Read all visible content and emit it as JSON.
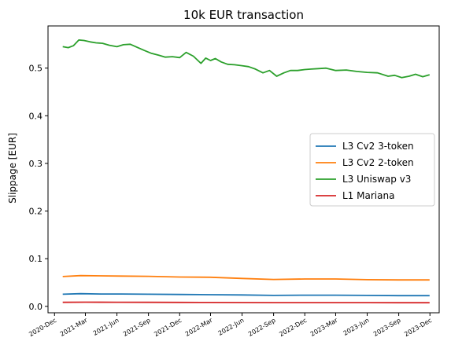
{
  "chart_data": {
    "type": "line",
    "title": "10k EUR transaction",
    "xlabel": "",
    "ylabel": "Slippage [EUR]",
    "xlim": [
      "2020-11-12",
      "2023-12-28"
    ],
    "ylim": [
      -0.0135,
      0.5885
    ],
    "yticks": [
      0.0,
      0.1,
      0.2,
      0.3,
      0.4,
      0.5
    ],
    "ytick_labels": [
      "0.0",
      "0.1",
      "0.2",
      "0.3",
      "0.4",
      "0.5"
    ],
    "xticks": [
      "2020-12-01",
      "2021-03-01",
      "2021-06-01",
      "2021-09-01",
      "2021-12-01",
      "2022-03-01",
      "2022-06-01",
      "2022-09-01",
      "2022-12-01",
      "2023-03-01",
      "2023-06-01",
      "2023-09-01",
      "2023-12-01"
    ],
    "xtick_labels": [
      "2020-Dec",
      "2021-Mar",
      "2021-Jun",
      "2021-Sep",
      "2021-Dec",
      "2022-Mar",
      "2022-Jun",
      "2022-Sep",
      "2022-Dec",
      "2023-Mar",
      "2023-Jun",
      "2023-Sep",
      "2023-Dec"
    ],
    "grid": false,
    "legend_position": "center-right",
    "series": [
      {
        "name": "L3 Cv2 3-token",
        "color": "#1f77b4",
        "x": [
          "2020-12-25",
          "2021-02-15",
          "2021-04-15",
          "2021-06-15",
          "2021-09-01",
          "2021-12-01",
          "2022-03-01",
          "2022-06-01",
          "2022-09-01",
          "2022-12-01",
          "2023-03-01",
          "2023-06-01",
          "2023-09-01",
          "2023-11-30"
        ],
        "y": [
          0.0255,
          0.0265,
          0.026,
          0.026,
          0.0255,
          0.025,
          0.0245,
          0.024,
          0.023,
          0.0235,
          0.0235,
          0.023,
          0.0225,
          0.0225
        ]
      },
      {
        "name": "L3 Cv2 2-token",
        "color": "#ff7f0e",
        "x": [
          "2020-12-25",
          "2021-02-15",
          "2021-04-15",
          "2021-06-15",
          "2021-09-01",
          "2021-12-01",
          "2022-03-01",
          "2022-06-01",
          "2022-09-01",
          "2022-12-01",
          "2023-03-01",
          "2023-06-01",
          "2023-09-01",
          "2023-11-30"
        ],
        "y": [
          0.0625,
          0.0645,
          0.064,
          0.0635,
          0.063,
          0.0615,
          0.061,
          0.0585,
          0.0565,
          0.0575,
          0.0575,
          0.056,
          0.0555,
          0.0555
        ]
      },
      {
        "name": "L3 Uniswap v3",
        "color": "#2ca02c",
        "x": [
          "2020-12-25",
          "2021-01-10",
          "2021-01-25",
          "2021-02-10",
          "2021-02-25",
          "2021-03-15",
          "2021-04-01",
          "2021-04-20",
          "2021-05-10",
          "2021-06-01",
          "2021-06-20",
          "2021-07-10",
          "2021-08-01",
          "2021-08-20",
          "2021-09-10",
          "2021-10-01",
          "2021-10-20",
          "2021-11-10",
          "2021-12-01",
          "2021-12-20",
          "2022-01-10",
          "2022-02-01",
          "2022-02-15",
          "2022-03-01",
          "2022-03-15",
          "2022-04-01",
          "2022-04-20",
          "2022-05-10",
          "2022-06-01",
          "2022-06-20",
          "2022-07-10",
          "2022-08-01",
          "2022-08-20",
          "2022-09-10",
          "2022-10-01",
          "2022-10-20",
          "2022-11-10",
          "2022-12-01",
          "2022-12-20",
          "2023-01-10",
          "2023-02-01",
          "2023-03-01",
          "2023-04-01",
          "2023-05-01",
          "2023-06-01",
          "2023-07-01",
          "2023-08-01",
          "2023-08-20",
          "2023-09-10",
          "2023-10-01",
          "2023-10-20",
          "2023-11-10",
          "2023-11-30"
        ],
        "y": [
          0.545,
          0.543,
          0.547,
          0.559,
          0.558,
          0.555,
          0.553,
          0.552,
          0.548,
          0.545,
          0.549,
          0.55,
          0.543,
          0.537,
          0.531,
          0.527,
          0.523,
          0.524,
          0.522,
          0.533,
          0.525,
          0.51,
          0.521,
          0.516,
          0.52,
          0.513,
          0.508,
          0.507,
          0.505,
          0.503,
          0.498,
          0.49,
          0.495,
          0.483,
          0.49,
          0.495,
          0.495,
          0.497,
          0.498,
          0.499,
          0.5,
          0.495,
          0.496,
          0.493,
          0.491,
          0.49,
          0.483,
          0.485,
          0.48,
          0.483,
          0.487,
          0.482,
          0.486
        ]
      },
      {
        "name": "L1 Mariana",
        "color": "#d62728",
        "x": [
          "2020-12-25",
          "2021-03-01",
          "2021-06-01",
          "2021-09-01",
          "2021-12-01",
          "2022-03-01",
          "2022-06-01",
          "2022-09-01",
          "2022-12-01",
          "2023-03-01",
          "2023-06-01",
          "2023-09-01",
          "2023-11-30"
        ],
        "y": [
          0.0085,
          0.0088,
          0.0086,
          0.0085,
          0.0083,
          0.0081,
          0.008,
          0.0077,
          0.0078,
          0.0078,
          0.0077,
          0.0076,
          0.0076
        ]
      }
    ]
  }
}
